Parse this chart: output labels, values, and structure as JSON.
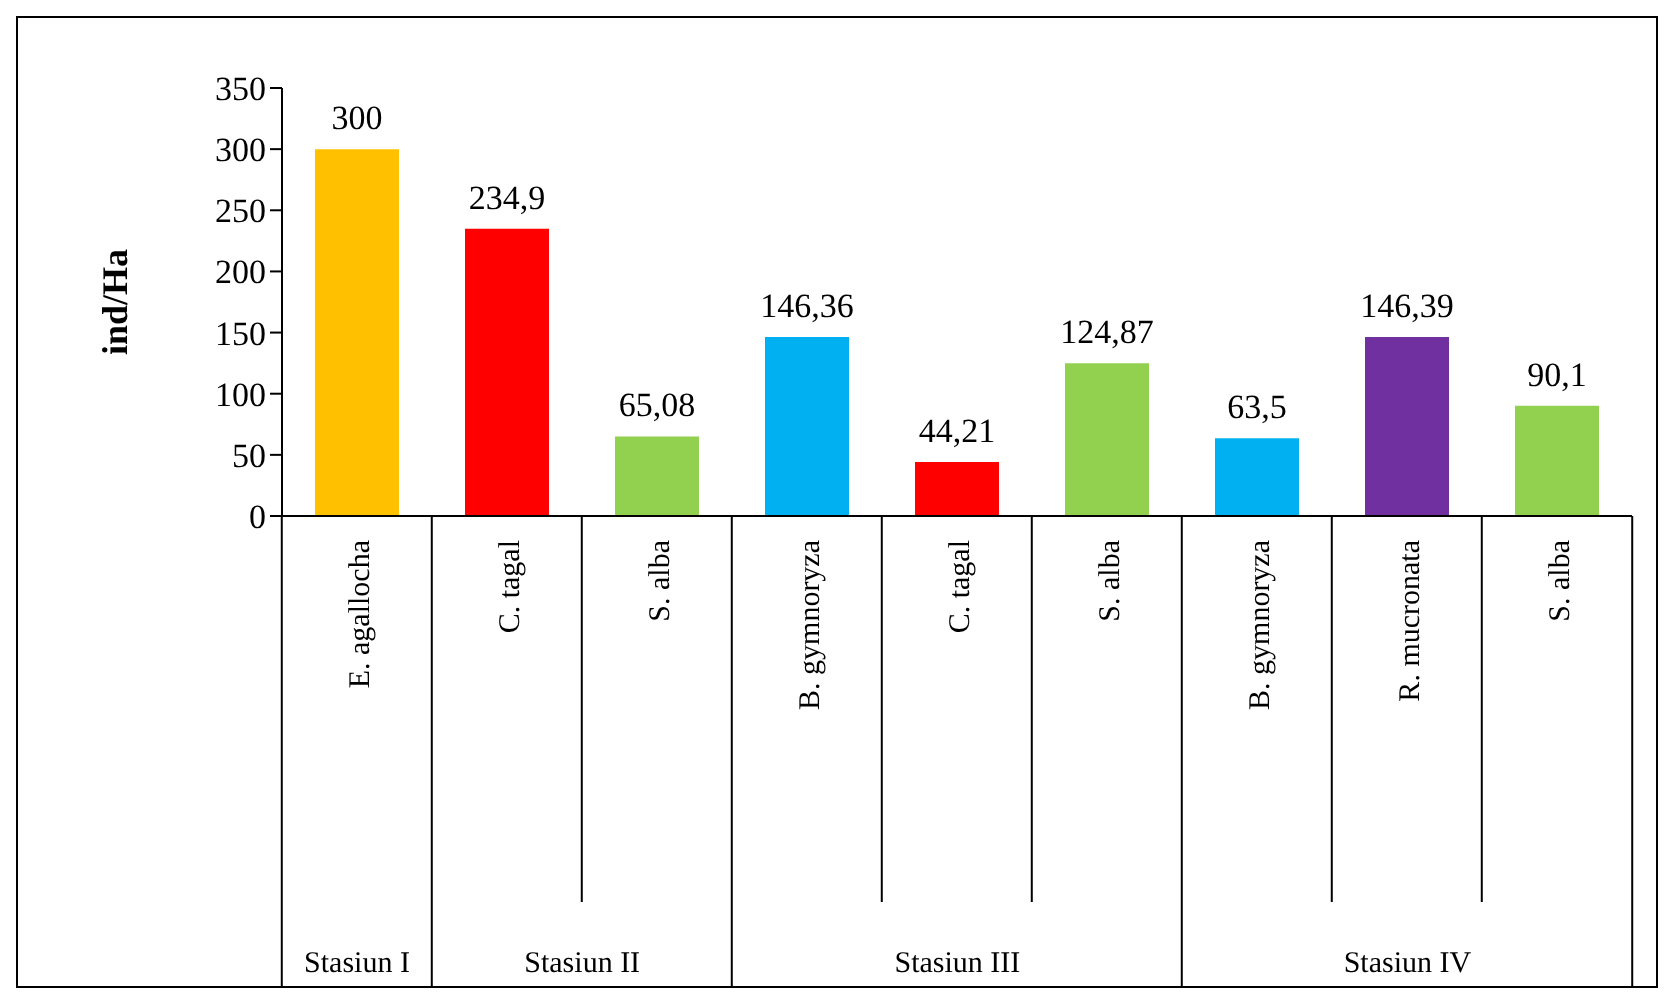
{
  "chart_data": {
    "type": "bar",
    "ylabel": "ind/Ha",
    "categories": [
      "E. agallocha",
      "C. tagal",
      "S. alba",
      "B. gymnoryza",
      "C. tagal",
      "S. alba",
      "B. gymnoryza",
      "R. mucronata",
      "S. alba"
    ],
    "values": [
      300,
      234.9,
      65.08,
      146.36,
      44.21,
      124.87,
      63.5,
      146.39,
      90.1
    ],
    "value_labels": [
      "300",
      "234,9",
      "65,08",
      "146,36",
      "44,21",
      "124,87",
      "63,5",
      "146,39",
      "90,1"
    ],
    "colors": [
      "#ffc000",
      "#ff0000",
      "#92d050",
      "#00b0f0",
      "#ff0000",
      "#92d050",
      "#00b0f0",
      "#7030a0",
      "#92d050"
    ],
    "ylim": [
      0,
      350
    ],
    "yticks": [
      0,
      50,
      100,
      150,
      200,
      250,
      300,
      350
    ],
    "grid": false,
    "legend": false,
    "annotations": [
      "Stasiun I",
      "Stasiun II",
      "Stasiun III",
      "Stasiun IV"
    ]
  }
}
